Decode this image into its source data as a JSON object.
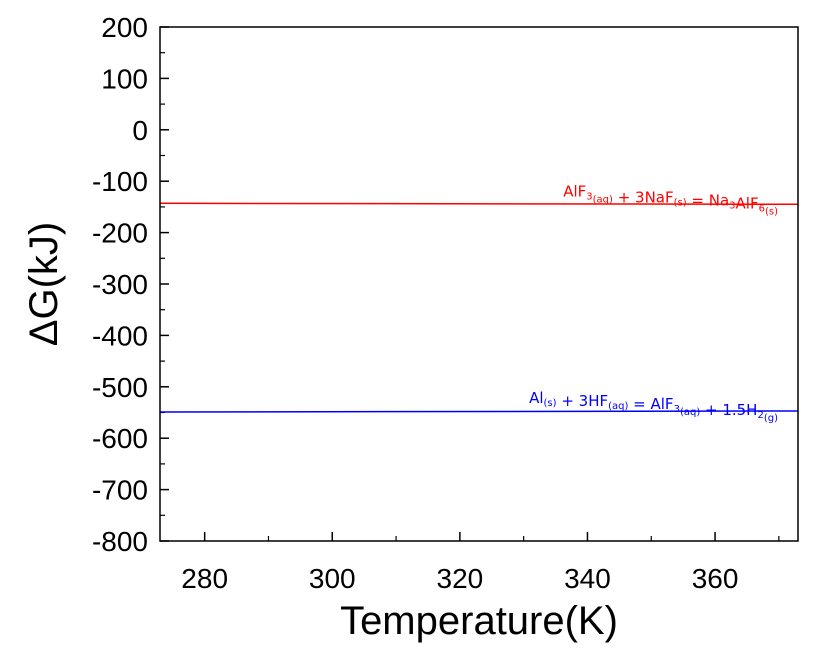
{
  "chart_data": {
    "type": "line",
    "xlabel": "Temperature(K)",
    "ylabel": "ΔG(kJ)",
    "xlim": [
      273,
      373
    ],
    "ylim": [
      -800,
      200
    ],
    "x_ticks": [
      280,
      300,
      320,
      340,
      360
    ],
    "y_ticks": [
      200,
      100,
      0,
      -100,
      -200,
      -300,
      -400,
      -500,
      -600,
      -700,
      -800
    ],
    "x_tick_labels": [
      "280",
      "300",
      "320",
      "340",
      "360"
    ],
    "y_tick_labels": [
      "200",
      "100",
      "0",
      "-100",
      "-200",
      "-300",
      "-400",
      "-500",
      "-600",
      "-700",
      "-800"
    ],
    "grid": false,
    "series": [
      {
        "color": "#ff0000",
        "x": [
          273,
          373
        ],
        "y": [
          -143,
          -145
        ],
        "annotation": [
          {
            "t": "AlF"
          },
          {
            "t": "3",
            "s": "sub"
          },
          {
            "t": "(aq)",
            "s": "sub"
          },
          {
            "t": " + 3NaF"
          },
          {
            "t": "(s)",
            "s": "sub"
          },
          {
            "t": " = Na"
          },
          {
            "t": "3",
            "s": "sub"
          },
          {
            "t": "AlF"
          },
          {
            "t": "6",
            "s": "sub"
          },
          {
            "t": "(s)",
            "s": "sub"
          }
        ]
      },
      {
        "color": "#0000ff",
        "x": [
          273,
          373
        ],
        "y": [
          -549,
          -547
        ],
        "annotation": [
          {
            "t": "Al"
          },
          {
            "t": "(s)",
            "s": "sub"
          },
          {
            "t": " + 3HF"
          },
          {
            "t": "(aq)",
            "s": "sub"
          },
          {
            "t": " = AlF"
          },
          {
            "t": "3",
            "s": "sub"
          },
          {
            "t": "(aq)",
            "s": "sub"
          },
          {
            "t": " + 1.5H"
          },
          {
            "t": "2",
            "s": "sub"
          },
          {
            "t": "(g)",
            "s": "sub"
          }
        ]
      }
    ]
  }
}
